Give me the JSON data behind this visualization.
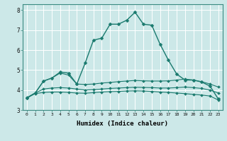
{
  "xlabel": "Humidex (Indice chaleur)",
  "xlim": [
    -0.5,
    23.5
  ],
  "ylim": [
    3,
    8.3
  ],
  "xticks": [
    0,
    1,
    2,
    3,
    4,
    5,
    6,
    7,
    8,
    9,
    10,
    11,
    12,
    13,
    14,
    15,
    16,
    17,
    18,
    19,
    20,
    21,
    22,
    23
  ],
  "yticks": [
    3,
    4,
    5,
    6,
    7,
    8
  ],
  "background_color": "#cce8e8",
  "grid_color": "#ffffff",
  "line_color": "#1a7a6e",
  "series": [
    {
      "x": [
        0,
        1,
        2,
        3,
        4,
        5,
        6,
        7,
        8,
        9,
        10,
        11,
        12,
        13,
        14,
        15,
        16,
        17,
        18,
        19,
        20,
        21,
        22,
        23
      ],
      "y": [
        3.6,
        3.85,
        4.45,
        4.6,
        4.9,
        4.85,
        4.3,
        5.35,
        6.5,
        6.6,
        7.3,
        7.3,
        7.5,
        7.9,
        7.3,
        7.25,
        6.3,
        5.5,
        4.8,
        4.5,
        4.5,
        4.4,
        4.2,
        3.55
      ],
      "marker": "D",
      "markersize": 2.5,
      "linewidth": 1.0
    },
    {
      "x": [
        0,
        1,
        2,
        3,
        4,
        5,
        6,
        7,
        8,
        9,
        10,
        11,
        12,
        13,
        14,
        15,
        16,
        17,
        18,
        19,
        20,
        21,
        22,
        23
      ],
      "y": [
        3.6,
        3.85,
        4.45,
        4.6,
        4.85,
        4.75,
        4.3,
        4.28,
        4.3,
        4.35,
        4.38,
        4.42,
        4.45,
        4.48,
        4.46,
        4.45,
        4.45,
        4.46,
        4.5,
        4.55,
        4.5,
        4.42,
        4.3,
        4.15
      ],
      "marker": "D",
      "markersize": 2.0,
      "linewidth": 0.8
    },
    {
      "x": [
        0,
        1,
        2,
        3,
        4,
        5,
        6,
        7,
        8,
        9,
        10,
        11,
        12,
        13,
        14,
        15,
        16,
        17,
        18,
        19,
        20,
        21,
        22,
        23
      ],
      "y": [
        3.62,
        3.85,
        4.05,
        4.1,
        4.12,
        4.1,
        4.05,
        4.0,
        4.02,
        4.05,
        4.08,
        4.1,
        4.12,
        4.14,
        4.13,
        4.12,
        4.1,
        4.1,
        4.12,
        4.15,
        4.12,
        4.08,
        4.0,
        3.85
      ],
      "marker": "D",
      "markersize": 2.0,
      "linewidth": 0.8
    },
    {
      "x": [
        0,
        1,
        2,
        3,
        4,
        5,
        6,
        7,
        8,
        9,
        10,
        11,
        12,
        13,
        14,
        15,
        16,
        17,
        18,
        19,
        20,
        21,
        22,
        23
      ],
      "y": [
        3.6,
        3.82,
        3.88,
        3.9,
        3.9,
        3.88,
        3.85,
        3.84,
        3.87,
        3.9,
        3.92,
        3.93,
        3.95,
        3.96,
        3.95,
        3.93,
        3.9,
        3.88,
        3.85,
        3.82,
        3.78,
        3.75,
        3.7,
        3.5
      ],
      "marker": "D",
      "markersize": 2.0,
      "linewidth": 0.8
    }
  ]
}
